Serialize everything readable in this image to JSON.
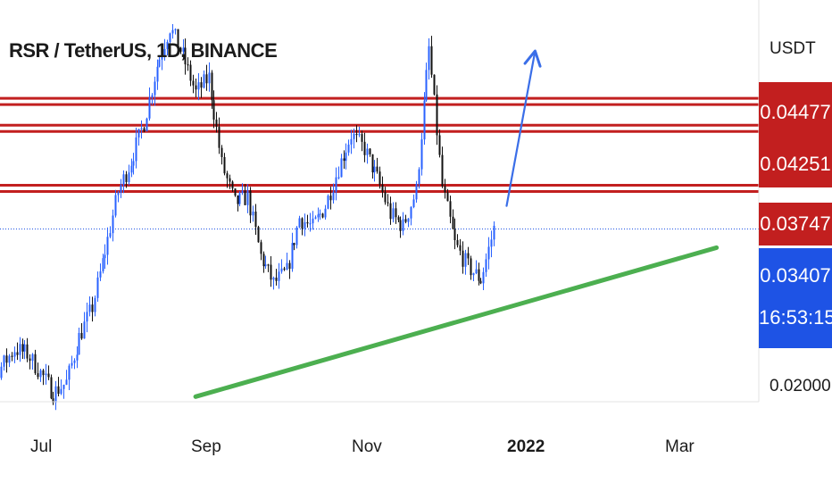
{
  "header": {
    "title": "RSR / TetherUS, 1D, BINANCE",
    "currency": "USDT"
  },
  "price_axis": {
    "bottom_label": "0.02000"
  },
  "tags": {
    "level1": "0.04477",
    "level2": "0.04251",
    "level3": "0.03747",
    "current_price": "0.03407",
    "countdown": "16:53:15"
  },
  "time_axis": {
    "jul": "Jul",
    "sep": "Sep",
    "nov": "Nov",
    "year": "2022",
    "mar": "Mar"
  },
  "colors": {
    "up": "#2962ff",
    "down": "#111111",
    "resistance": "#c21f1f",
    "support_trendline": "#4caf50",
    "arrow": "#3a6ee8",
    "current_line": "#1e53e5"
  },
  "chart_data": {
    "type": "candlestick",
    "title": "RSR / TetherUS, 1D, BINANCE",
    "ylabel": "USDT",
    "ylim": [
      0.0198,
      0.0535
    ],
    "x_ticks": [
      "Jul",
      "Sep",
      "Nov",
      "2022",
      "Mar"
    ],
    "resistance_levels": [
      0.03747,
      0.04251,
      0.04477
    ],
    "current_price": 0.03407,
    "support_trendline": [
      [
        "2021-08-31",
        0.02
      ],
      [
        "2022-03-20",
        0.0325
      ]
    ],
    "projection_arrow": [
      [
        "2021-12-29",
        0.036
      ],
      [
        "2022-01-09",
        0.049
      ]
    ],
    "series": [
      {
        "name": "price",
        "x": [
          "2021-06-02",
          "2021-06-07",
          "2021-06-12",
          "2021-06-17",
          "2021-06-22",
          "2021-06-27",
          "2021-07-02",
          "2021-07-07",
          "2021-07-12",
          "2021-07-17",
          "2021-07-22",
          "2021-07-27",
          "2021-08-01",
          "2021-08-06",
          "2021-08-11",
          "2021-08-16",
          "2021-08-21",
          "2021-08-26",
          "2021-08-31",
          "2021-09-05",
          "2021-09-10",
          "2021-09-15",
          "2021-09-20",
          "2021-09-25",
          "2021-09-30",
          "2021-10-05",
          "2021-10-10",
          "2021-10-15",
          "2021-10-20",
          "2021-10-25",
          "2021-10-30",
          "2021-11-04",
          "2021-11-09",
          "2021-11-14",
          "2021-11-19",
          "2021-11-24",
          "2021-11-29",
          "2021-12-04",
          "2021-12-09",
          "2021-12-14",
          "2021-12-19",
          "2021-12-24"
        ],
        "values": [
          0.026,
          0.0232,
          0.0214,
          0.0225,
          0.024,
          0.0236,
          0.022,
          0.0203,
          0.0212,
          0.025,
          0.0275,
          0.0322,
          0.0372,
          0.0398,
          0.043,
          0.0478,
          0.051,
          0.0486,
          0.0455,
          0.0468,
          0.0395,
          0.0362,
          0.0368,
          0.0318,
          0.0295,
          0.0305,
          0.035,
          0.0342,
          0.036,
          0.0392,
          0.042,
          0.0408,
          0.0383,
          0.0353,
          0.0343,
          0.0373,
          0.0492,
          0.0376,
          0.0328,
          0.0309,
          0.0298,
          0.0341
        ]
      }
    ]
  }
}
